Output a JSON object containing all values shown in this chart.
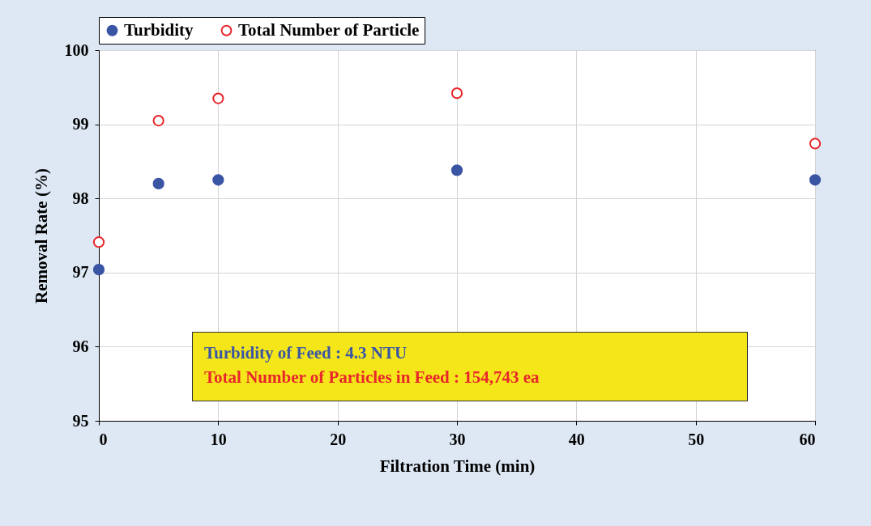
{
  "chart_data": {
    "type": "scatter",
    "xlabel": "Filtration Time (min)",
    "ylabel": "Removal Rate (%)",
    "x": [
      0,
      5,
      10,
      30,
      60
    ],
    "series": [
      {
        "name": "Turbidity",
        "color": "#3a55a4",
        "values": [
          97.04,
          98.2,
          98.25,
          98.38,
          98.25
        ]
      },
      {
        "name": "Total Number of Particle",
        "color": "#e8262b",
        "values": [
          97.41,
          99.05,
          99.35,
          99.42,
          98.74
        ]
      }
    ],
    "xlim": [
      0,
      60
    ],
    "xticks": [
      0,
      10,
      20,
      30,
      40,
      50,
      60
    ],
    "ylim": [
      95,
      100
    ],
    "yticks": [
      95,
      96,
      97,
      98,
      99,
      100
    ],
    "grid": true,
    "legend": "top",
    "marker": "circle",
    "annotations": [
      "Turbidity of Feed : 4.3 NTU",
      "Total Number of Particles in Feed : 154,743 ea"
    ]
  }
}
